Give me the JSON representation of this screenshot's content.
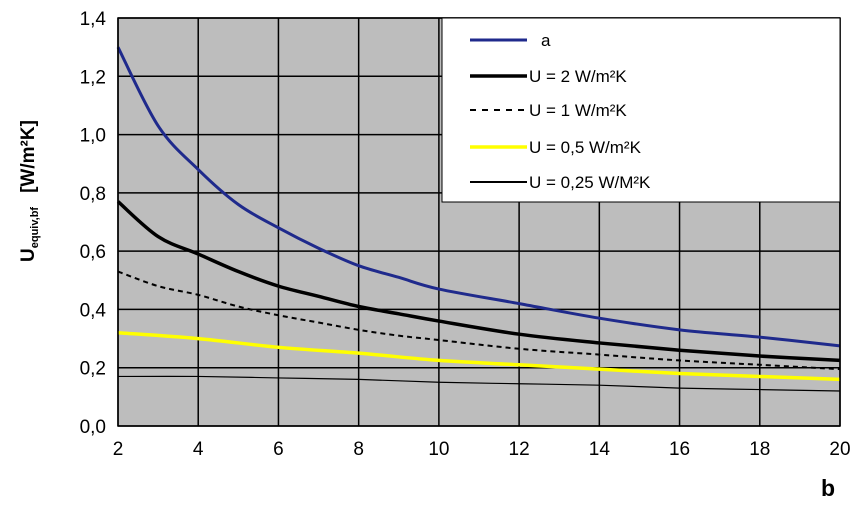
{
  "chart_data": {
    "type": "line",
    "title": "",
    "xlabel": "b",
    "ylabel": "U",
    "ylabel_subscript": "equiv,bf",
    "ylabel_unit": "[W/m²K]",
    "xlim": [
      2,
      20
    ],
    "ylim": [
      0,
      1.4
    ],
    "xticks": [
      "2",
      "4",
      "6",
      "8",
      "10",
      "12",
      "14",
      "16",
      "18",
      "20"
    ],
    "yticks": [
      "0,0",
      "0,2",
      "0,4",
      "0,6",
      "0,8",
      "1,0",
      "1,2",
      "1,4"
    ],
    "grid": true,
    "legend_position": "top-right",
    "series": [
      {
        "name": "a",
        "color": "#1f2a8c",
        "style": "solid-medium",
        "x": [
          2,
          3,
          4,
          5,
          6,
          7,
          8,
          9,
          10,
          12,
          14,
          16,
          18,
          20
        ],
        "y": [
          1.3,
          1.03,
          0.88,
          0.76,
          0.68,
          0.61,
          0.55,
          0.51,
          0.47,
          0.42,
          0.37,
          0.33,
          0.305,
          0.275
        ]
      },
      {
        "name": "U = 2 W/m²K",
        "color": "#000000",
        "style": "solid-thick",
        "x": [
          2,
          3,
          4,
          5,
          6,
          7,
          8,
          9,
          10,
          12,
          14,
          16,
          18,
          20
        ],
        "y": [
          0.77,
          0.65,
          0.59,
          0.53,
          0.48,
          0.445,
          0.41,
          0.385,
          0.36,
          0.315,
          0.285,
          0.26,
          0.24,
          0.225
        ]
      },
      {
        "name": "U = 1 W/m²K",
        "color": "#000000",
        "style": "dashed",
        "x": [
          2,
          3,
          4,
          5,
          6,
          7,
          8,
          9,
          10,
          12,
          14,
          16,
          18,
          20
        ],
        "y": [
          0.53,
          0.48,
          0.45,
          0.41,
          0.38,
          0.355,
          0.33,
          0.31,
          0.295,
          0.265,
          0.245,
          0.225,
          0.21,
          0.195
        ]
      },
      {
        "name": "U = 0,5 W/m²K",
        "color": "#ffff00",
        "style": "solid-thick",
        "x": [
          2,
          4,
          6,
          8,
          10,
          12,
          14,
          16,
          18,
          20
        ],
        "y": [
          0.32,
          0.3,
          0.27,
          0.25,
          0.225,
          0.21,
          0.195,
          0.18,
          0.17,
          0.16
        ]
      },
      {
        "name": "U = 0,25 W/M²K",
        "color": "#000000",
        "style": "solid-thin",
        "x": [
          2,
          4,
          6,
          8,
          10,
          12,
          14,
          16,
          18,
          20
        ],
        "y": [
          0.17,
          0.17,
          0.165,
          0.16,
          0.15,
          0.145,
          0.14,
          0.13,
          0.125,
          0.12
        ]
      }
    ]
  }
}
